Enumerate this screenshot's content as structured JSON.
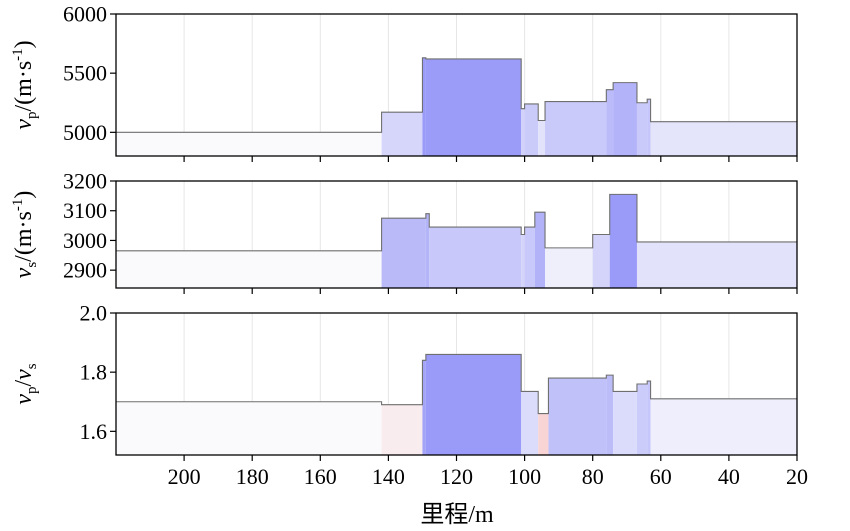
{
  "chart_data": [
    {
      "type": "area",
      "panel": "vp",
      "ylabel_main": "v",
      "ylabel_sub": "p",
      "ylabel_unit": "/(m·s",
      "ylabel_sup": "-1",
      "ylabel_close": ")",
      "ylim": [
        4800,
        6000
      ],
      "yticks": [
        5000,
        5500,
        6000
      ],
      "xlim": [
        220,
        20
      ],
      "xticks": [
        200,
        180,
        160,
        140,
        120,
        100,
        80,
        60,
        40,
        20
      ],
      "grid": true,
      "baseline": 5000,
      "steps": [
        {
          "x0": 220,
          "x1": 142,
          "y": 5000
        },
        {
          "x0": 142,
          "x1": 130,
          "y": 5170
        },
        {
          "x0": 130,
          "x1": 129,
          "y": 5630
        },
        {
          "x0": 129,
          "x1": 101,
          "y": 5620
        },
        {
          "x0": 101,
          "x1": 100,
          "y": 5200
        },
        {
          "x0": 100,
          "x1": 96,
          "y": 5240
        },
        {
          "x0": 96,
          "x1": 94,
          "y": 5100
        },
        {
          "x0": 94,
          "x1": 76,
          "y": 5260
        },
        {
          "x0": 76,
          "x1": 74,
          "y": 5360
        },
        {
          "x0": 74,
          "x1": 67,
          "y": 5420
        },
        {
          "x0": 67,
          "x1": 64,
          "y": 5250
        },
        {
          "x0": 64,
          "x1": 63,
          "y": 5280
        },
        {
          "x0": 63,
          "x1": 20,
          "y": 5090
        }
      ]
    },
    {
      "type": "area",
      "panel": "vs",
      "ylabel_main": "v",
      "ylabel_sub": "s",
      "ylabel_unit": "/(m·s",
      "ylabel_sup": "-1",
      "ylabel_close": ")",
      "ylim": [
        2840,
        3200
      ],
      "yticks": [
        2900,
        3000,
        3100,
        3200
      ],
      "xlim": [
        220,
        20
      ],
      "xticks": [
        200,
        180,
        160,
        140,
        120,
        100,
        80,
        60,
        40,
        20
      ],
      "grid": true,
      "baseline": 2965,
      "steps": [
        {
          "x0": 220,
          "x1": 142,
          "y": 2965
        },
        {
          "x0": 142,
          "x1": 129,
          "y": 3075
        },
        {
          "x0": 129,
          "x1": 128,
          "y": 3090
        },
        {
          "x0": 128,
          "x1": 101,
          "y": 3045
        },
        {
          "x0": 101,
          "x1": 100,
          "y": 3020
        },
        {
          "x0": 100,
          "x1": 97,
          "y": 3045
        },
        {
          "x0": 97,
          "x1": 94,
          "y": 3095
        },
        {
          "x0": 94,
          "x1": 80,
          "y": 2975
        },
        {
          "x0": 80,
          "x1": 75,
          "y": 3020
        },
        {
          "x0": 75,
          "x1": 67,
          "y": 3155
        },
        {
          "x0": 67,
          "x1": 20,
          "y": 2995
        }
      ]
    },
    {
      "type": "area",
      "panel": "ratio",
      "ylabel_main": "v",
      "ylabel_sub": "p",
      "ylabel_mid": "/v",
      "ylabel_sub2": "s",
      "ylim": [
        1.52,
        2.0
      ],
      "yticks": [
        1.6,
        1.8,
        2.0
      ],
      "ytick_labels": [
        "1.6",
        "1.8",
        "2.0"
      ],
      "xlim": [
        220,
        20
      ],
      "xticks": [
        200,
        180,
        160,
        140,
        120,
        100,
        80,
        60,
        40,
        20
      ],
      "xlabel": "里程/m",
      "grid": true,
      "baseline": 1.7,
      "steps": [
        {
          "x0": 220,
          "x1": 142,
          "y": 1.7
        },
        {
          "x0": 142,
          "x1": 130,
          "y": 1.69
        },
        {
          "x0": 130,
          "x1": 129,
          "y": 1.84
        },
        {
          "x0": 129,
          "x1": 101,
          "y": 1.86
        },
        {
          "x0": 101,
          "x1": 96,
          "y": 1.735
        },
        {
          "x0": 96,
          "x1": 93,
          "y": 1.66
        },
        {
          "x0": 93,
          "x1": 76,
          "y": 1.78
        },
        {
          "x0": 76,
          "x1": 74,
          "y": 1.79
        },
        {
          "x0": 74,
          "x1": 67,
          "y": 1.735
        },
        {
          "x0": 67,
          "x1": 64,
          "y": 1.76
        },
        {
          "x0": 64,
          "x1": 63,
          "y": 1.77
        },
        {
          "x0": 63,
          "x1": 20,
          "y": 1.71
        }
      ]
    }
  ],
  "colors": {
    "increase_max": "#9a9af8",
    "decrease_max": "#f6b4b4",
    "neutral": "#fafafc",
    "line": "#6f6f6f"
  }
}
